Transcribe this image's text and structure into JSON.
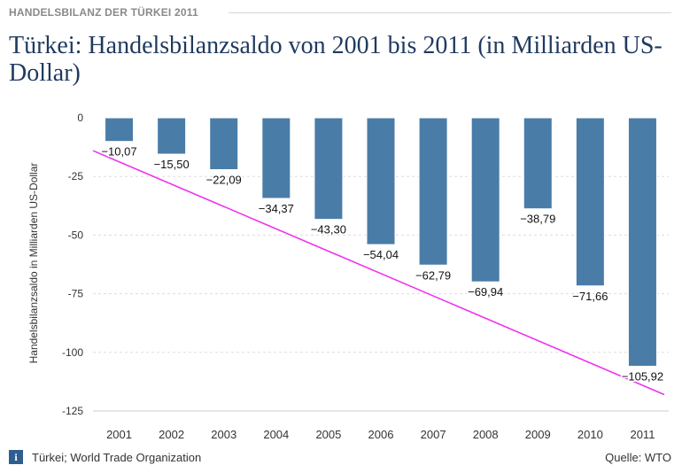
{
  "header": {
    "kicker": "HANDELSBILANZ DER TÜRKEI 2011",
    "title": "Türkei: Handelsbilanzsaldo von 2001 bis 2011 (in Milliarden US-Dollar)"
  },
  "footer": {
    "source_note": "Türkei; World Trade Organization",
    "source_label": "Quelle: WTO",
    "info_glyph": "i"
  },
  "colors": {
    "bar": "#4a7ca8",
    "trend": "#ee33ee",
    "grid": "#dddddd"
  },
  "chart_data": {
    "type": "bar",
    "title": "Türkei: Handelsbilanzsaldo von 2001 bis 2011 (in Milliarden US-Dollar)",
    "xlabel": "",
    "ylabel": "Handelsbilanzsaldo in Milliarden US-Dollar",
    "categories": [
      "2001",
      "2002",
      "2003",
      "2004",
      "2005",
      "2006",
      "2007",
      "2008",
      "2009",
      "2010",
      "2011"
    ],
    "values": [
      -10.07,
      -15.5,
      -22.09,
      -34.37,
      -43.3,
      -54.04,
      -62.79,
      -69.94,
      -38.79,
      -71.66,
      -105.92
    ],
    "data_labels": [
      "−10,07",
      "−15,50",
      "−22,09",
      "−34,37",
      "−43,30",
      "−54,04",
      "−62,79",
      "−69,94",
      "−38,79",
      "−71,66",
      "−105,92"
    ],
    "ylim": [
      -125,
      0
    ],
    "yticks": [
      0,
      -25,
      -50,
      -75,
      -100,
      -125
    ],
    "ytick_labels": [
      "0",
      "-25",
      "-50",
      "-75",
      "-100",
      "-125"
    ],
    "grid": true,
    "trendline": {
      "start_value": -14,
      "end_value": -118
    }
  }
}
